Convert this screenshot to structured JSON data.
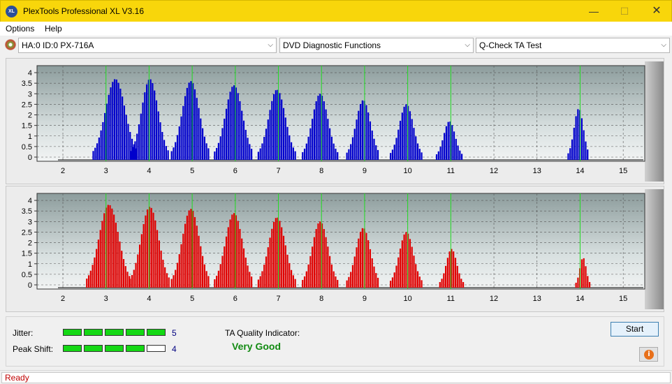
{
  "window": {
    "title": "PlexTools Professional XL V3.16",
    "icon_label": "XL",
    "minimize_glyph": "—",
    "maximize_glyph": "☐",
    "close_glyph": "✕"
  },
  "menu": {
    "items": [
      "Options",
      "Help"
    ]
  },
  "toolbar": {
    "drive_select": "HA:0 ID:0  PX-716A",
    "function_select": "DVD Diagnostic Functions",
    "test_select": "Q-Check TA Test",
    "dropdown_glyph": "⌵"
  },
  "colors": {
    "top_bars": "#0000cc",
    "bottom_bars": "#e00000",
    "marker_lines": "#22dd22",
    "meter_on": "#14d814",
    "quality_text": "#118a11",
    "titlebar": "#f8d60b"
  },
  "chart_data": [
    {
      "type": "bar",
      "name": "top",
      "x_ticks": [
        "2",
        "3",
        "4",
        "5",
        "6",
        "7",
        "8",
        "9",
        "10",
        "11",
        "12",
        "13",
        "14",
        "15"
      ],
      "y_ticks": [
        "0",
        "0.5",
        "1",
        "1.5",
        "2",
        "2.5",
        "3",
        "3.5",
        "4"
      ],
      "xlim": [
        1.4,
        15.5
      ],
      "ylim": [
        0,
        4.2
      ],
      "marker_lines": [
        3,
        4,
        5,
        6,
        7,
        8,
        9,
        10,
        11,
        14
      ],
      "peaks": [
        {
          "center": 3.2,
          "peak": 3.7,
          "width": 0.38
        },
        {
          "center": 4.0,
          "peak": 3.7,
          "width": 0.32
        },
        {
          "center": 4.95,
          "peak": 3.6,
          "width": 0.33
        },
        {
          "center": 5.95,
          "peak": 3.4,
          "width": 0.33
        },
        {
          "center": 6.95,
          "peak": 3.2,
          "width": 0.32
        },
        {
          "center": 7.95,
          "peak": 3.0,
          "width": 0.3
        },
        {
          "center": 8.95,
          "peak": 2.7,
          "width": 0.28
        },
        {
          "center": 9.95,
          "peak": 2.5,
          "width": 0.27
        },
        {
          "center": 10.95,
          "peak": 1.7,
          "width": 0.22
        },
        {
          "center": 13.95,
          "peak": 2.3,
          "width": 0.18
        }
      ]
    },
    {
      "type": "bar",
      "name": "bottom",
      "x_ticks": [
        "2",
        "3",
        "4",
        "5",
        "6",
        "7",
        "8",
        "9",
        "10",
        "11",
        "12",
        "13",
        "14",
        "15"
      ],
      "y_ticks": [
        "0",
        "0.5",
        "1",
        "1.5",
        "2",
        "2.5",
        "3",
        "3.5",
        "4"
      ],
      "xlim": [
        1.4,
        15.5
      ],
      "ylim": [
        0,
        4.2
      ],
      "marker_lines": [
        3,
        4,
        5,
        6,
        7,
        8,
        9,
        10,
        11,
        14
      ],
      "peaks": [
        {
          "center": 3.05,
          "peak": 3.8,
          "width": 0.38
        },
        {
          "center": 4.0,
          "peak": 3.7,
          "width": 0.34
        },
        {
          "center": 4.95,
          "peak": 3.6,
          "width": 0.33
        },
        {
          "center": 5.95,
          "peak": 3.4,
          "width": 0.33
        },
        {
          "center": 6.95,
          "peak": 3.2,
          "width": 0.32
        },
        {
          "center": 7.95,
          "peak": 3.0,
          "width": 0.3
        },
        {
          "center": 8.95,
          "peak": 2.7,
          "width": 0.28
        },
        {
          "center": 9.95,
          "peak": 2.5,
          "width": 0.27
        },
        {
          "center": 11.0,
          "peak": 1.7,
          "width": 0.2
        },
        {
          "center": 14.05,
          "peak": 1.3,
          "width": 0.12
        }
      ]
    }
  ],
  "results": {
    "jitter_label": "Jitter:",
    "jitter_value": "5",
    "jitter_level": 5,
    "peak_shift_label": "Peak Shift:",
    "peak_shift_value": "4",
    "peak_shift_level": 4,
    "meter_max": 5,
    "ta_quality_label": "TA Quality Indicator:",
    "ta_quality_value": "Very Good"
  },
  "buttons": {
    "start": "Start",
    "info_glyph": "i"
  },
  "status": {
    "text": "Ready"
  }
}
